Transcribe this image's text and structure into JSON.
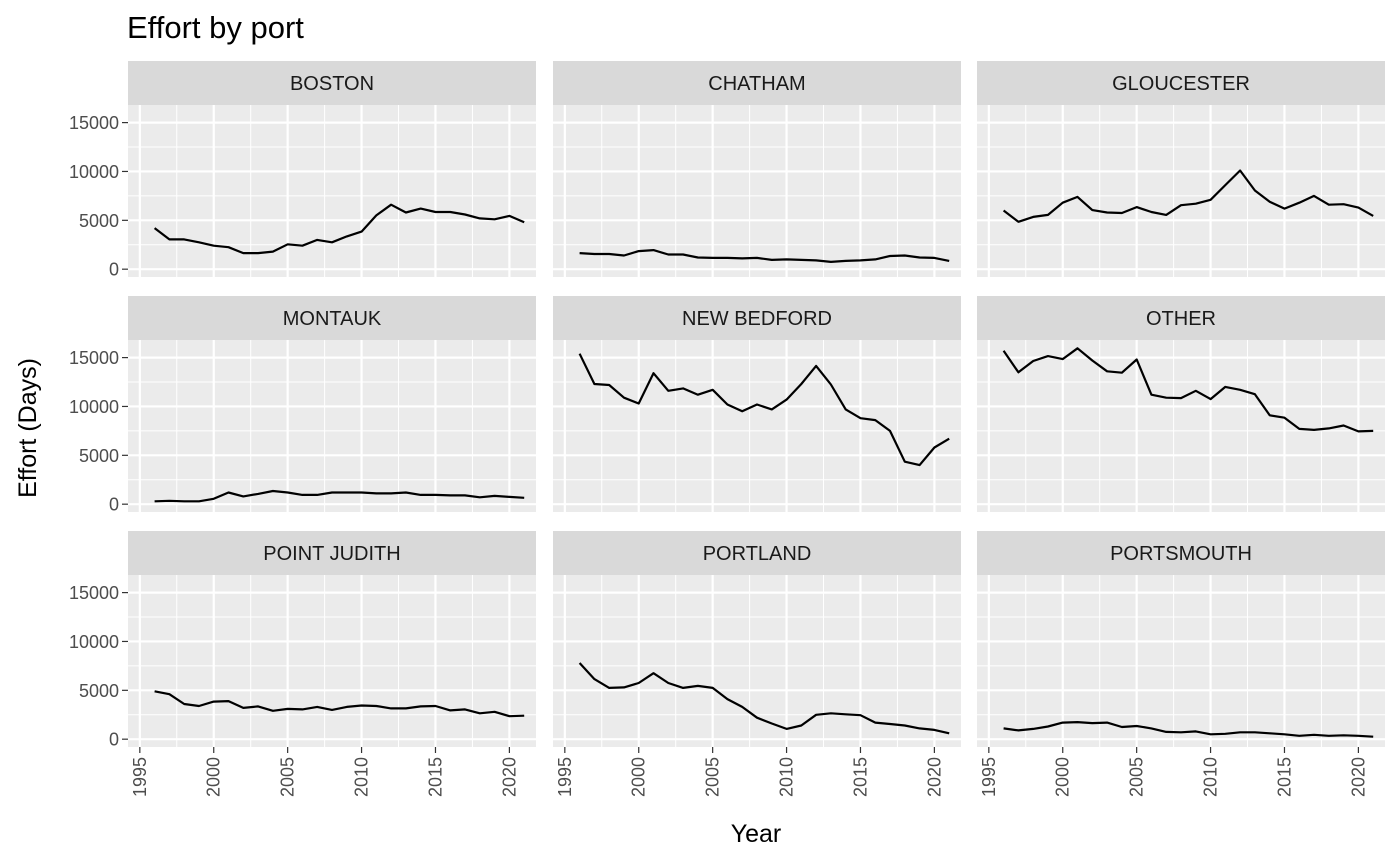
{
  "chart_data": {
    "type": "line",
    "title": "Effort by port",
    "xlabel": "Year",
    "ylabel": "Effort (Days)",
    "xlim": [
      1994.2,
      2021.8
    ],
    "ylim": [
      -800,
      16800
    ],
    "x_ticks": [
      1995,
      2000,
      2005,
      2010,
      2015,
      2020
    ],
    "y_ticks": [
      0,
      5000,
      10000,
      15000
    ],
    "layout": {
      "columns": 3,
      "rows": 3
    },
    "colors": {
      "panel": "#ebebeb",
      "strip": "#d9d9d9",
      "grid_major": "#ffffff",
      "line": "#000000",
      "tick_text": "#4d4d4d"
    },
    "x": [
      1996,
      1997,
      1998,
      1999,
      2000,
      2001,
      2002,
      2003,
      2004,
      2005,
      2006,
      2007,
      2008,
      2009,
      2010,
      2011,
      2012,
      2013,
      2014,
      2015,
      2016,
      2017,
      2018,
      2019,
      2020,
      2021
    ],
    "panels": [
      {
        "name": "BOSTON",
        "values": [
          4200,
          3050,
          3050,
          2750,
          2400,
          2250,
          1650,
          1650,
          1800,
          2550,
          2400,
          3000,
          2750,
          3350,
          3850,
          5500,
          6600,
          5800,
          6200,
          5850,
          5850,
          5600,
          5200,
          5100,
          5450,
          4800
        ]
      },
      {
        "name": "CHATHAM",
        "values": [
          1650,
          1550,
          1550,
          1400,
          1850,
          1950,
          1500,
          1500,
          1200,
          1150,
          1150,
          1100,
          1150,
          950,
          1000,
          950,
          900,
          750,
          850,
          900,
          1000,
          1350,
          1400,
          1200,
          1150,
          850
        ]
      },
      {
        "name": "GLOUCESTER",
        "values": [
          6000,
          4850,
          5350,
          5550,
          6800,
          7400,
          6050,
          5800,
          5750,
          6350,
          5850,
          5550,
          6550,
          6700,
          7100,
          8600,
          10100,
          8050,
          6900,
          6200,
          6800,
          7500,
          6600,
          6650,
          6300,
          5450
        ]
      },
      {
        "name": "MONTAUK",
        "values": [
          300,
          350,
          300,
          300,
          550,
          1200,
          800,
          1050,
          1350,
          1200,
          950,
          950,
          1200,
          1200,
          1200,
          1100,
          1100,
          1200,
          950,
          950,
          900,
          900,
          700,
          850,
          750,
          650
        ]
      },
      {
        "name": "NEW BEDFORD",
        "values": [
          15400,
          12300,
          12200,
          10900,
          10300,
          13400,
          11600,
          11850,
          11200,
          11700,
          10200,
          9500,
          10200,
          9700,
          10700,
          12300,
          14150,
          12250,
          9700,
          8800,
          8600,
          7500,
          4350,
          4000,
          5800,
          6700
        ]
      },
      {
        "name": "OTHER",
        "values": [
          15700,
          13500,
          14650,
          15150,
          14850,
          15950,
          14700,
          13600,
          13450,
          14800,
          11200,
          10900,
          10850,
          11600,
          10750,
          12000,
          11700,
          11250,
          9100,
          8850,
          7700,
          7600,
          7750,
          8050,
          7450,
          7500
        ]
      },
      {
        "name": "POINT JUDITH",
        "values": [
          4900,
          4600,
          3600,
          3400,
          3850,
          3900,
          3200,
          3350,
          2900,
          3100,
          3050,
          3300,
          3000,
          3300,
          3450,
          3400,
          3150,
          3150,
          3350,
          3400,
          2950,
          3050,
          2650,
          2800,
          2350,
          2400
        ]
      },
      {
        "name": "PORTLAND",
        "values": [
          7800,
          6150,
          5250,
          5300,
          5750,
          6750,
          5750,
          5250,
          5450,
          5250,
          4100,
          3300,
          2200,
          1600,
          1050,
          1400,
          2500,
          2650,
          2550,
          2450,
          1700,
          1550,
          1400,
          1100,
          950,
          600
        ]
      },
      {
        "name": "PORTSMOUTH",
        "values": [
          1100,
          900,
          1050,
          1300,
          1700,
          1750,
          1650,
          1700,
          1250,
          1350,
          1100,
          750,
          700,
          800,
          500,
          550,
          700,
          700,
          600,
          500,
          350,
          450,
          350,
          400,
          350,
          250
        ]
      }
    ]
  }
}
